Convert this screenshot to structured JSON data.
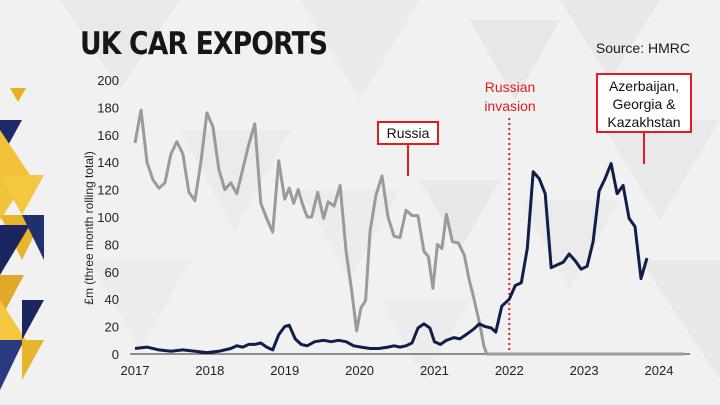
{
  "header": {
    "title": "UK CAR EXPORTS",
    "source": "Source: HMRC"
  },
  "annotations": {
    "russia": "Russia",
    "invasion_line1": "Russian",
    "invasion_line2": "invasion",
    "caucasus_line1": "Azerbaijan,",
    "caucasus_line2": "Georgia &",
    "caucasus_line3": "Kazakhstan"
  },
  "colors": {
    "russia_series": "#9a9a9a",
    "caucasus_series": "#101e4a",
    "annotation_red": "#e31c23"
  },
  "chart_data": {
    "type": "line",
    "ylabel": "£m (three month rolling total)",
    "ylim": [
      0,
      200
    ],
    "xlim": [
      2017,
      2024.7
    ],
    "y_ticks": [
      0,
      20,
      40,
      60,
      80,
      100,
      120,
      140,
      160,
      180,
      200
    ],
    "x_ticks": [
      2017,
      2018,
      2019,
      2020,
      2021,
      2022,
      2023,
      2024
    ],
    "grid": false,
    "events": [
      {
        "label": "Russian invasion",
        "x": 2022.0
      }
    ],
    "series": [
      {
        "name": "Russia",
        "points": [
          [
            2017.0,
            154
          ],
          [
            2017.08,
            178
          ],
          [
            2017.16,
            140
          ],
          [
            2017.24,
            127
          ],
          [
            2017.32,
            121
          ],
          [
            2017.4,
            125
          ],
          [
            2017.48,
            146
          ],
          [
            2017.56,
            155
          ],
          [
            2017.64,
            146
          ],
          [
            2017.72,
            118
          ],
          [
            2017.8,
            112
          ],
          [
            2017.88,
            140
          ],
          [
            2017.96,
            176
          ],
          [
            2018.04,
            166
          ],
          [
            2018.12,
            135
          ],
          [
            2018.2,
            120
          ],
          [
            2018.28,
            125
          ],
          [
            2018.36,
            117
          ],
          [
            2018.44,
            135
          ],
          [
            2018.52,
            153
          ],
          [
            2018.6,
            168
          ],
          [
            2018.68,
            110
          ],
          [
            2018.76,
            99
          ],
          [
            2018.84,
            89
          ],
          [
            2018.92,
            141
          ],
          [
            2019.0,
            113
          ],
          [
            2019.06,
            121
          ],
          [
            2019.12,
            110
          ],
          [
            2019.18,
            120
          ],
          [
            2019.24,
            109
          ],
          [
            2019.3,
            100
          ],
          [
            2019.36,
            100
          ],
          [
            2019.44,
            118
          ],
          [
            2019.52,
            99
          ],
          [
            2019.58,
            111
          ],
          [
            2019.66,
            108
          ],
          [
            2019.74,
            123
          ],
          [
            2019.82,
            75
          ],
          [
            2019.9,
            44
          ],
          [
            2019.96,
            17
          ],
          [
            2020.02,
            34
          ],
          [
            2020.08,
            39
          ],
          [
            2020.14,
            90
          ],
          [
            2020.22,
            116
          ],
          [
            2020.3,
            130
          ],
          [
            2020.38,
            100
          ],
          [
            2020.46,
            86
          ],
          [
            2020.54,
            85
          ],
          [
            2020.62,
            105
          ],
          [
            2020.7,
            101
          ],
          [
            2020.78,
            101
          ],
          [
            2020.86,
            75
          ],
          [
            2020.92,
            71
          ],
          [
            2020.98,
            48
          ],
          [
            2021.04,
            80
          ],
          [
            2021.1,
            77
          ],
          [
            2021.16,
            102
          ],
          [
            2021.24,
            82
          ],
          [
            2021.32,
            81
          ],
          [
            2021.4,
            72
          ],
          [
            2021.46,
            55
          ],
          [
            2021.52,
            42
          ],
          [
            2021.58,
            28
          ],
          [
            2021.62,
            18
          ],
          [
            2021.66,
            6
          ],
          [
            2021.7,
            0
          ],
          [
            2024.33,
            0
          ]
        ]
      },
      {
        "name": "Azerbaijan, Georgia & Kazakhstan",
        "points": [
          [
            2017.0,
            4
          ],
          [
            2017.16,
            5
          ],
          [
            2017.32,
            3
          ],
          [
            2017.48,
            2
          ],
          [
            2017.64,
            3
          ],
          [
            2017.8,
            2
          ],
          [
            2017.96,
            1
          ],
          [
            2018.12,
            2
          ],
          [
            2018.28,
            4
          ],
          [
            2018.36,
            6
          ],
          [
            2018.44,
            5
          ],
          [
            2018.52,
            7
          ],
          [
            2018.6,
            7
          ],
          [
            2018.68,
            8
          ],
          [
            2018.76,
            5
          ],
          [
            2018.84,
            3
          ],
          [
            2018.92,
            14
          ],
          [
            2019.0,
            20
          ],
          [
            2019.06,
            21
          ],
          [
            2019.14,
            11
          ],
          [
            2019.22,
            7
          ],
          [
            2019.3,
            6
          ],
          [
            2019.4,
            9
          ],
          [
            2019.52,
            10
          ],
          [
            2019.62,
            9
          ],
          [
            2019.72,
            10
          ],
          [
            2019.82,
            9
          ],
          [
            2019.92,
            6
          ],
          [
            2020.02,
            5
          ],
          [
            2020.14,
            4
          ],
          [
            2020.26,
            4
          ],
          [
            2020.38,
            5
          ],
          [
            2020.46,
            6
          ],
          [
            2020.54,
            5
          ],
          [
            2020.62,
            6
          ],
          [
            2020.7,
            8
          ],
          [
            2020.78,
            19
          ],
          [
            2020.86,
            22
          ],
          [
            2020.94,
            19
          ],
          [
            2021.0,
            9
          ],
          [
            2021.08,
            7
          ],
          [
            2021.16,
            10
          ],
          [
            2021.26,
            12
          ],
          [
            2021.34,
            11
          ],
          [
            2021.42,
            14
          ],
          [
            2021.52,
            18
          ],
          [
            2021.6,
            22
          ],
          [
            2021.68,
            20
          ],
          [
            2021.76,
            19
          ],
          [
            2021.82,
            16
          ],
          [
            2021.9,
            35
          ],
          [
            2022.0,
            40
          ],
          [
            2022.08,
            50
          ],
          [
            2022.16,
            52
          ],
          [
            2022.24,
            77
          ],
          [
            2022.32,
            133
          ],
          [
            2022.4,
            128
          ],
          [
            2022.48,
            117
          ],
          [
            2022.56,
            63
          ],
          [
            2022.64,
            65
          ],
          [
            2022.72,
            67
          ],
          [
            2022.8,
            73
          ],
          [
            2022.88,
            68
          ],
          [
            2022.96,
            62
          ],
          [
            2023.04,
            64
          ],
          [
            2023.12,
            82
          ],
          [
            2023.2,
            119
          ],
          [
            2023.28,
            128
          ],
          [
            2023.36,
            139
          ],
          [
            2023.44,
            117
          ],
          [
            2023.52,
            123
          ],
          [
            2023.6,
            99
          ],
          [
            2023.68,
            93
          ],
          [
            2023.76,
            55
          ],
          [
            2023.84,
            70
          ]
        ]
      }
    ]
  }
}
